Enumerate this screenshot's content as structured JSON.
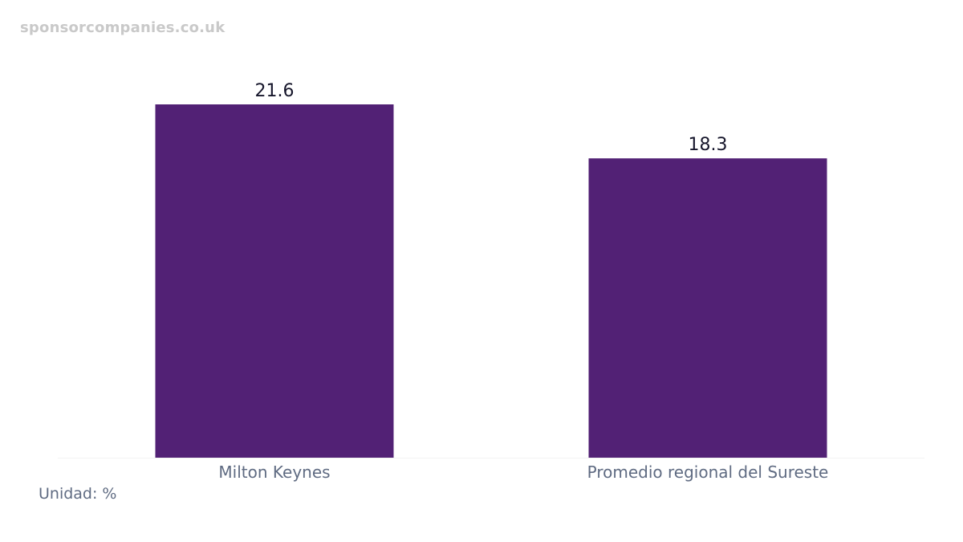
{
  "watermark": "sponsorcompanies.co.uk",
  "unit_label": "Unidad: %",
  "colors": {
    "bar": "#522175",
    "baseline": "#f2f2f2"
  },
  "chart_data": {
    "type": "bar",
    "categories": [
      "Milton Keynes",
      "Promedio regional del Sureste"
    ],
    "values": [
      21.6,
      18.3
    ],
    "value_labels": [
      "21.6",
      "18.3"
    ],
    "title": "",
    "xlabel": "",
    "ylabel": "",
    "ylim": [
      0,
      21.6
    ],
    "grid": false
  }
}
